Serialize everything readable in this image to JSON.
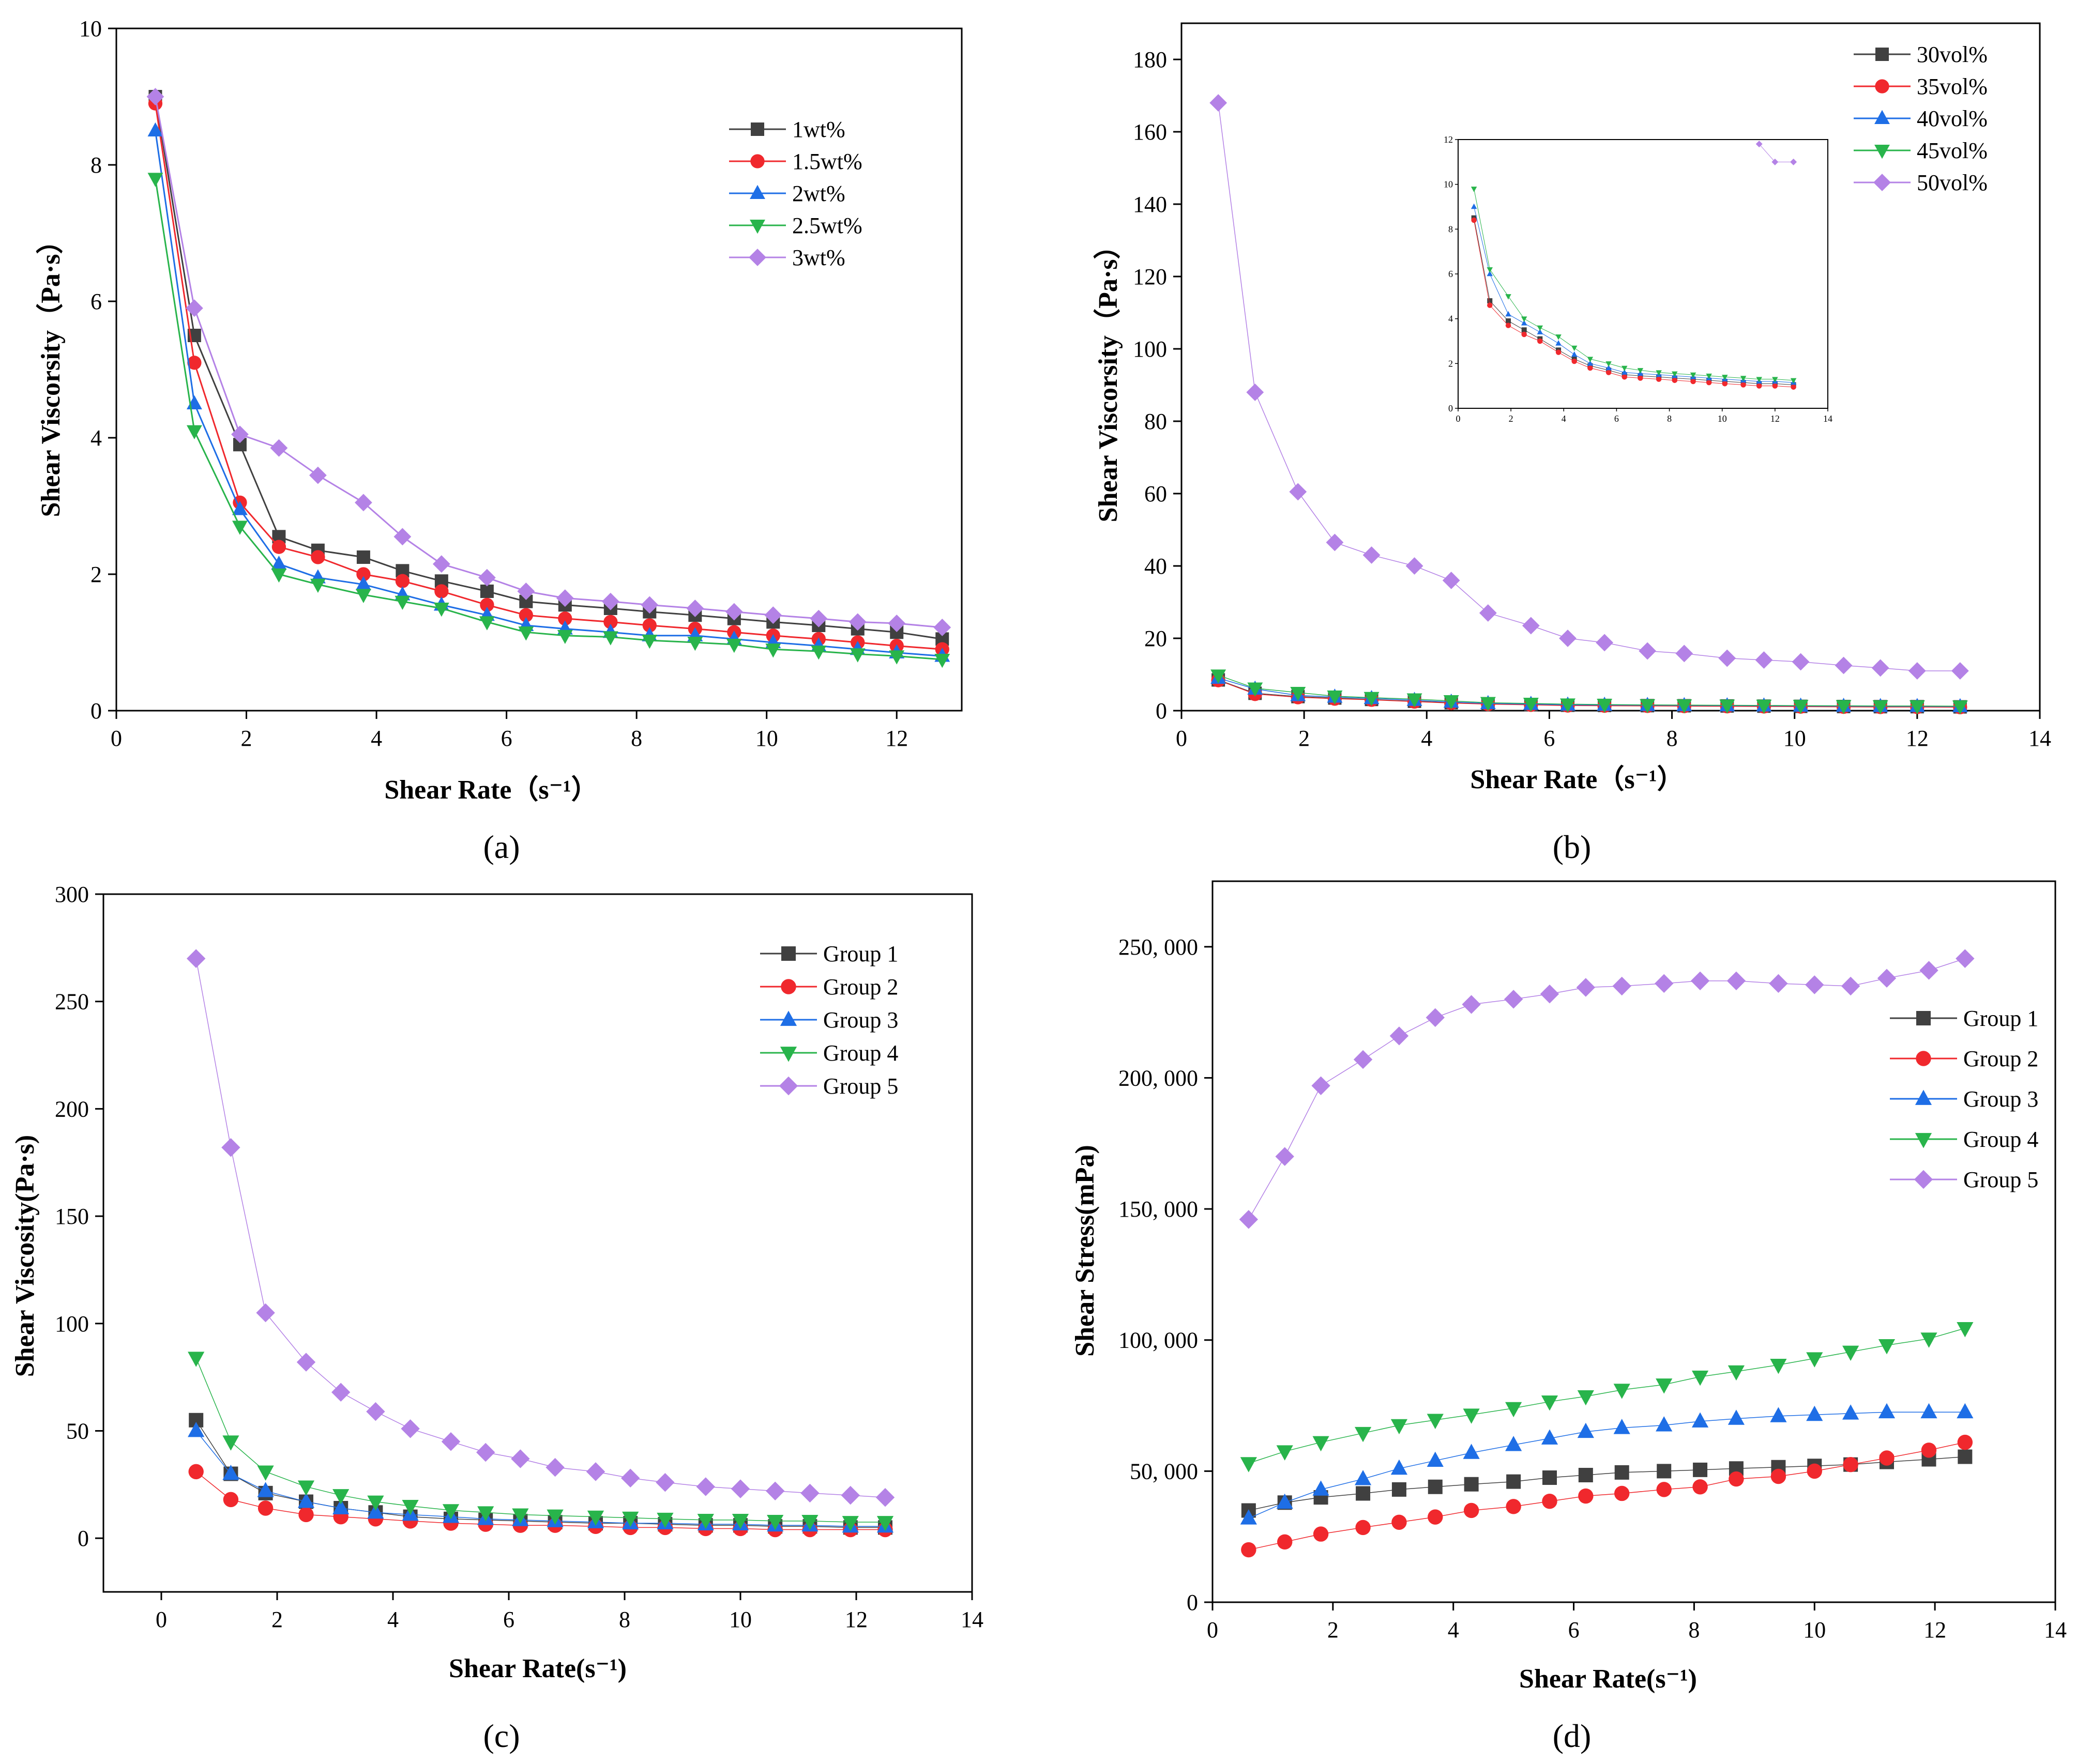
{
  "colors": {
    "black": "#404040",
    "red": "#f0282d",
    "blue": "#1e6ee6",
    "green": "#28b44b",
    "purple": "#b482e6"
  },
  "chart_data": [
    {
      "id": "a",
      "type": "line",
      "caption": "(a)",
      "xlabel": "Shear Rate（s⁻¹）",
      "ylabel": "Shear Viscorsity（Pa·s）",
      "xlim": [
        0,
        13
      ],
      "ylim": [
        0,
        10
      ],
      "xticks": [
        0,
        2,
        4,
        6,
        8,
        10,
        12
      ],
      "yticks": [
        0,
        2,
        4,
        6,
        8,
        10
      ],
      "xtick_labels": [
        "0",
        "2",
        "4",
        "6",
        "8",
        "10",
        "12"
      ],
      "ytick_labels": [
        "0",
        "2",
        "4",
        "6",
        "8",
        "10"
      ],
      "x": [
        0.6,
        1.2,
        1.9,
        2.5,
        3.1,
        3.8,
        4.4,
        5.0,
        5.7,
        6.3,
        6.9,
        7.6,
        8.2,
        8.9,
        9.5,
        10.1,
        10.8,
        11.4,
        12.0,
        12.7
      ],
      "series": [
        {
          "name": "1wt%",
          "color": "#404040",
          "marker": "square",
          "values": [
            9.0,
            5.5,
            3.9,
            2.55,
            2.35,
            2.25,
            2.05,
            1.9,
            1.75,
            1.6,
            1.55,
            1.5,
            1.45,
            1.4,
            1.35,
            1.3,
            1.25,
            1.2,
            1.15,
            1.05
          ]
        },
        {
          "name": "1.5wt%",
          "color": "#f0282d",
          "marker": "circle",
          "values": [
            8.9,
            5.1,
            3.05,
            2.4,
            2.25,
            2.0,
            1.9,
            1.75,
            1.55,
            1.4,
            1.35,
            1.3,
            1.25,
            1.2,
            1.15,
            1.1,
            1.05,
            1.0,
            0.95,
            0.9
          ]
        },
        {
          "name": "2wt%",
          "color": "#1e6ee6",
          "marker": "triangle-up",
          "values": [
            8.5,
            4.5,
            2.95,
            2.15,
            1.95,
            1.85,
            1.7,
            1.55,
            1.4,
            1.25,
            1.2,
            1.15,
            1.1,
            1.1,
            1.05,
            1.0,
            0.95,
            0.9,
            0.85,
            0.8
          ]
        },
        {
          "name": "2.5wt%",
          "color": "#28b44b",
          "marker": "triangle-down",
          "values": [
            7.8,
            4.1,
            2.7,
            2.0,
            1.85,
            1.7,
            1.6,
            1.5,
            1.3,
            1.15,
            1.1,
            1.08,
            1.03,
            1.0,
            0.97,
            0.9,
            0.87,
            0.83,
            0.8,
            0.75
          ]
        },
        {
          "name": "3wt%",
          "color": "#b482e6",
          "marker": "diamond",
          "values": [
            9.0,
            5.9,
            4.05,
            3.85,
            3.45,
            3.05,
            2.55,
            2.15,
            1.95,
            1.75,
            1.65,
            1.6,
            1.55,
            1.5,
            1.45,
            1.4,
            1.35,
            1.3,
            1.28,
            1.22
          ]
        }
      ],
      "legend": "top-right"
    },
    {
      "id": "b",
      "type": "scatter",
      "caption": "(b)",
      "xlabel": "Shear Rate（s⁻¹）",
      "ylabel": "Shear Viscorsity（Pa·s）",
      "xlim": [
        0,
        14
      ],
      "ylim": [
        0,
        190
      ],
      "xticks": [
        0,
        2,
        4,
        6,
        8,
        10,
        12,
        14
      ],
      "yticks": [
        0,
        20,
        40,
        60,
        80,
        100,
        120,
        140,
        160,
        180
      ],
      "xtick_labels": [
        "0",
        "2",
        "4",
        "6",
        "8",
        "10",
        "12",
        "14"
      ],
      "ytick_labels": [
        "0",
        "20",
        "40",
        "60",
        "80",
        "100",
        "120",
        "140",
        "160",
        "180"
      ],
      "x": [
        0.6,
        1.2,
        1.9,
        2.5,
        3.1,
        3.8,
        4.4,
        5.0,
        5.7,
        6.3,
        6.9,
        7.6,
        8.2,
        8.9,
        9.5,
        10.1,
        10.8,
        11.4,
        12.0,
        12.7
      ],
      "series": [
        {
          "name": "30vol%",
          "color": "#404040",
          "marker": "square",
          "values": [
            8.5,
            4.8,
            3.9,
            3.5,
            3.1,
            2.6,
            2.2,
            1.9,
            1.7,
            1.5,
            1.45,
            1.4,
            1.35,
            1.3,
            1.25,
            1.2,
            1.15,
            1.1,
            1.1,
            1.05
          ]
        },
        {
          "name": "35vol%",
          "color": "#f0282d",
          "marker": "circle",
          "values": [
            8.4,
            4.6,
            3.7,
            3.3,
            3.0,
            2.5,
            2.1,
            1.8,
            1.6,
            1.4,
            1.35,
            1.3,
            1.25,
            1.2,
            1.15,
            1.1,
            1.05,
            1.0,
            1.0,
            0.95
          ]
        },
        {
          "name": "40vol%",
          "color": "#1e6ee6",
          "marker": "triangle-up",
          "values": [
            9.0,
            6.0,
            4.2,
            3.8,
            3.4,
            2.9,
            2.4,
            2.0,
            1.8,
            1.6,
            1.55,
            1.5,
            1.45,
            1.4,
            1.35,
            1.3,
            1.25,
            1.2,
            1.2,
            1.15
          ]
        },
        {
          "name": "45vol%",
          "color": "#28b44b",
          "marker": "triangle-down",
          "values": [
            9.8,
            6.2,
            5.0,
            4.0,
            3.6,
            3.2,
            2.7,
            2.2,
            2.0,
            1.8,
            1.7,
            1.6,
            1.55,
            1.5,
            1.45,
            1.4,
            1.35,
            1.3,
            1.3,
            1.25
          ]
        },
        {
          "name": "50vol%",
          "color": "#b482e6",
          "marker": "diamond",
          "values": [
            168,
            88,
            60.5,
            46.5,
            43,
            40,
            36,
            27,
            23.5,
            20,
            18.8,
            16.5,
            15.8,
            14.5,
            14,
            13.5,
            12.5,
            11.8,
            11,
            11
          ]
        }
      ],
      "legend": "top-right",
      "inset": {
        "xlim": [
          0,
          14
        ],
        "ylim": [
          0,
          12
        ],
        "xticks": [
          0,
          2,
          4,
          6,
          8,
          10,
          12,
          14
        ],
        "yticks": [
          0,
          2,
          4,
          6,
          8,
          10,
          12
        ],
        "xtick_labels": [
          "0",
          "2",
          "4",
          "6",
          "8",
          "10",
          "12",
          "14"
        ],
        "ytick_labels": [
          "0",
          "2",
          "4",
          "6",
          "8",
          "10",
          "12"
        ]
      }
    },
    {
      "id": "c",
      "type": "line",
      "caption": "(c)",
      "xlabel": "Shear Rate(s⁻¹)",
      "ylabel": "Shear Viscosity(Pa·s)",
      "xlim": [
        -1,
        14
      ],
      "ylim": [
        -25,
        300
      ],
      "xticks": [
        0,
        2,
        4,
        6,
        8,
        10,
        12,
        14
      ],
      "yticks": [
        0,
        50,
        100,
        150,
        200,
        250,
        300
      ],
      "xtick_labels": [
        "0",
        "2",
        "4",
        "6",
        "8",
        "10",
        "12",
        "14"
      ],
      "ytick_labels": [
        "0",
        "50",
        "100",
        "150",
        "200",
        "250",
        "300"
      ],
      "x": [
        0.6,
        1.2,
        1.8,
        2.5,
        3.1,
        3.7,
        4.3,
        5.0,
        5.6,
        6.2,
        6.8,
        7.5,
        8.1,
        8.7,
        9.4,
        10.0,
        10.6,
        11.2,
        11.9,
        12.5
      ],
      "series": [
        {
          "name": "Group 1",
          "color": "#404040",
          "marker": "square",
          "values": [
            55,
            30,
            21,
            17,
            14,
            12,
            10,
            9,
            8.5,
            8,
            7.5,
            7,
            7,
            6.5,
            6,
            6,
            5.5,
            5.5,
            5,
            5
          ]
        },
        {
          "name": "Group 2",
          "color": "#f0282d",
          "marker": "circle",
          "values": [
            31,
            18,
            14,
            11,
            10,
            9,
            8,
            7,
            6.5,
            6,
            6,
            5.5,
            5,
            5,
            4.5,
            4.5,
            4,
            4,
            4,
            4
          ]
        },
        {
          "name": "Group 3",
          "color": "#1e6ee6",
          "marker": "triangle-up",
          "values": [
            50,
            30,
            22,
            17,
            14,
            12,
            11,
            10,
            9,
            8.5,
            8,
            7.5,
            7,
            7,
            6.5,
            6.5,
            6,
            6,
            5.5,
            5.5
          ]
        },
        {
          "name": "Group 4",
          "color": "#28b44b",
          "marker": "triangle-down",
          "values": [
            84,
            45,
            31,
            24,
            20,
            17,
            15,
            13,
            12,
            11,
            10.5,
            10,
            9.5,
            9,
            8.5,
            8.5,
            8,
            8,
            7.5,
            7.5
          ]
        },
        {
          "name": "Group 5",
          "color": "#b482e6",
          "marker": "diamond",
          "values": [
            270,
            182,
            105,
            82,
            68,
            59,
            51,
            45,
            40,
            37,
            33,
            31,
            28,
            26,
            24,
            23,
            22,
            21,
            20,
            19
          ]
        }
      ],
      "legend": "top-right"
    },
    {
      "id": "d",
      "type": "line",
      "caption": "(d)",
      "xlabel": "Shear Rate(s⁻¹)",
      "ylabel": "Shear Stress(mPa)",
      "xlim": [
        0,
        14
      ],
      "ylim": [
        0,
        275000
      ],
      "xticks": [
        0,
        2,
        4,
        6,
        8,
        10,
        12,
        14
      ],
      "yticks": [
        0,
        50000,
        100000,
        150000,
        200000,
        250000
      ],
      "xtick_labels": [
        "0",
        "2",
        "4",
        "6",
        "8",
        "10",
        "12",
        "14"
      ],
      "ytick_labels": [
        "0",
        "50, 000",
        "100, 000",
        "150, 000",
        "200, 000",
        "250, 000"
      ],
      "x": [
        0.6,
        1.2,
        1.8,
        2.5,
        3.1,
        3.7,
        4.3,
        5.0,
        5.6,
        6.2,
        6.8,
        7.5,
        8.1,
        8.7,
        9.4,
        10.0,
        10.6,
        11.2,
        11.9,
        12.5
      ],
      "series": [
        {
          "name": "Group 1",
          "color": "#404040",
          "marker": "square",
          "values": [
            35000,
            38000,
            40000,
            41500,
            43000,
            44000,
            45000,
            46000,
            47500,
            48500,
            49500,
            50000,
            50500,
            51000,
            51500,
            52000,
            52500,
            53500,
            54500,
            55500
          ]
        },
        {
          "name": "Group 2",
          "color": "#f0282d",
          "marker": "circle",
          "values": [
            20000,
            23000,
            26000,
            28500,
            30500,
            32500,
            35000,
            36500,
            38500,
            40500,
            41500,
            43000,
            44000,
            47000,
            48000,
            50000,
            52500,
            55000,
            58000,
            61000
          ]
        },
        {
          "name": "Group 3",
          "color": "#1e6ee6",
          "marker": "triangle-up",
          "values": [
            32000,
            38000,
            43000,
            47000,
            51000,
            54000,
            57000,
            60000,
            62500,
            65000,
            66500,
            67500,
            69000,
            70000,
            71000,
            71500,
            72000,
            72500,
            72500,
            72500
          ]
        },
        {
          "name": "Group 4",
          "color": "#28b44b",
          "marker": "triangle-down",
          "values": [
            53000,
            57500,
            61000,
            64500,
            67500,
            69500,
            71500,
            74000,
            76500,
            78500,
            81000,
            83000,
            86000,
            88000,
            90500,
            93000,
            95500,
            98000,
            100500,
            104500
          ]
        },
        {
          "name": "Group 5",
          "color": "#b482e6",
          "marker": "diamond",
          "values": [
            146000,
            170000,
            197000,
            207000,
            216000,
            223000,
            228000,
            230000,
            232000,
            234500,
            235000,
            236000,
            237000,
            237000,
            236000,
            235500,
            235000,
            238000,
            241000,
            245500
          ]
        }
      ],
      "legend": "middle-right"
    }
  ]
}
